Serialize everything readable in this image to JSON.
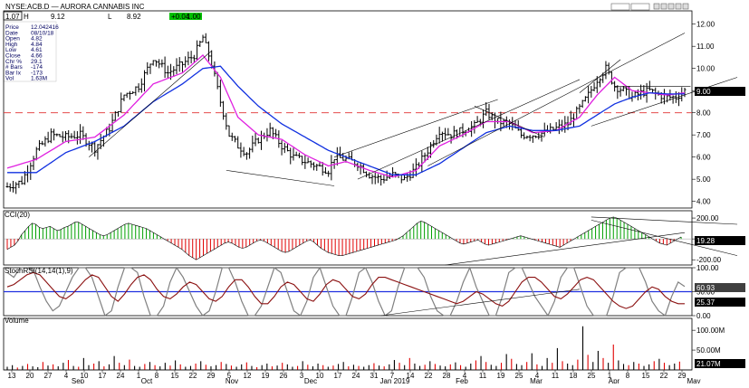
{
  "header": {
    "left_value": "1.07",
    "h_label": "H",
    "h_value": "9.12",
    "l_label": "L",
    "l_value": "8.92",
    "change": "+0.04",
    "change_value": "1.00",
    "symbol": "NYSE:ACB.D — AURORA CANNABIS INC"
  },
  "info_box": [
    {
      "label": "Price",
      "value": "12.042416"
    },
    {
      "label": "Date",
      "value": "08/10/18"
    },
    {
      "label": "Open",
      "value": "4.82"
    },
    {
      "label": "High",
      "value": "4.84"
    },
    {
      "label": "Low",
      "value": "4.61"
    },
    {
      "label": "Close",
      "value": "4.66"
    },
    {
      "label": "Chr %",
      "value": "29.1"
    },
    {
      "label": "# Bars",
      "value": "-174"
    },
    {
      "label": "Bar Ix",
      "value": "-173"
    },
    {
      "label": "Vol",
      "value": "1.63M"
    }
  ],
  "panels": {
    "cci": {
      "label": "CCI(20)",
      "ticks": [
        "200.00",
        "0.00",
        "-200.00"
      ],
      "value_badge": "19.28"
    },
    "stoch": {
      "label": "StochRSI(14,14(1),9)",
      "ticks": [
        "100.00",
        "50.00",
        "0.00"
      ],
      "value_badge_1": "60.93",
      "value_badge_2": "25.37"
    },
    "volume": {
      "label": "Volume",
      "ticks": [
        "100.00M",
        "50.00M"
      ],
      "value_badge": "21.07M"
    }
  },
  "price_badge": "9.00",
  "x_axis": {
    "day_ticks": [
      "13",
      "20",
      "27",
      "4",
      "10",
      "17",
      "24",
      "1",
      "8",
      "15",
      "22",
      "29",
      "5",
      "12",
      "19",
      "26",
      "3",
      "10",
      "17",
      "24",
      "31",
      "7",
      "14",
      "22",
      "28",
      "4",
      "11",
      "19",
      "25",
      "4",
      "11",
      "18",
      "25",
      "1",
      "8",
      "15",
      "22",
      "29"
    ],
    "month_labels": [
      "Sep",
      "Oct",
      "Nov",
      "Dec",
      "Jan 2019",
      "Feb",
      "Mar",
      "Apr",
      "May"
    ]
  },
  "chart_data": [
    {
      "type": "candlestick",
      "title": "NYSE:ACB.D — AURORA CANNABIS INC",
      "y_ticks": [
        4.0,
        5.0,
        6.0,
        7.0,
        8.0,
        9.0,
        10.0,
        11.0,
        12.0
      ],
      "ylim": [
        3.7,
        12.6
      ],
      "horizontal_line": 8.0,
      "last_price": 9.0,
      "close_path": [
        [
          0,
          4.66
        ],
        [
          5,
          4.9
        ],
        [
          10,
          6.3
        ],
        [
          15,
          7.0
        ],
        [
          20,
          6.9
        ],
        [
          25,
          7.0
        ],
        [
          30,
          6.4
        ],
        [
          35,
          7.3
        ],
        [
          40,
          8.8
        ],
        [
          45,
          9.2
        ],
        [
          50,
          10.5
        ],
        [
          55,
          9.8
        ],
        [
          60,
          10.2
        ],
        [
          64,
          10.6
        ],
        [
          67,
          11.4
        ],
        [
          70,
          10.2
        ],
        [
          73,
          8.5
        ],
        [
          76,
          7.0
        ],
        [
          79,
          6.5
        ],
        [
          82,
          6.2
        ],
        [
          86,
          6.8
        ],
        [
          90,
          7.2
        ],
        [
          94,
          6.5
        ],
        [
          98,
          6.0
        ],
        [
          102,
          5.8
        ],
        [
          106,
          5.6
        ],
        [
          110,
          5.4
        ],
        [
          112,
          6.0
        ],
        [
          116,
          5.9
        ],
        [
          120,
          5.7
        ],
        [
          124,
          5.2
        ],
        [
          128,
          5.0
        ],
        [
          132,
          5.2
        ],
        [
          136,
          5.0
        ],
        [
          140,
          5.5
        ],
        [
          144,
          6.3
        ],
        [
          148,
          7.2
        ],
        [
          152,
          7.0
        ],
        [
          156,
          7.2
        ],
        [
          160,
          7.4
        ],
        [
          164,
          8.0
        ],
        [
          168,
          7.6
        ],
        [
          172,
          7.5
        ],
        [
          176,
          7.0
        ],
        [
          180,
          7.0
        ],
        [
          184,
          7.1
        ],
        [
          188,
          7.3
        ],
        [
          192,
          7.5
        ],
        [
          196,
          8.2
        ],
        [
          199,
          8.8
        ],
        [
          202,
          9.5
        ],
        [
          205,
          10.0
        ],
        [
          208,
          9.2
        ],
        [
          211,
          9.0
        ],
        [
          214,
          8.7
        ],
        [
          217,
          8.9
        ],
        [
          220,
          9.0
        ],
        [
          223,
          8.8
        ],
        [
          226,
          8.7
        ],
        [
          229,
          8.7
        ],
        [
          232,
          9.0
        ]
      ],
      "series": [
        {
          "name": "",
          "color": "#e020e0",
          "values": [
            [
              0,
              5.5
            ],
            [
              10,
              5.9
            ],
            [
              20,
              6.7
            ],
            [
              30,
              6.9
            ],
            [
              40,
              7.9
            ],
            [
              50,
              9.3
            ],
            [
              60,
              9.8
            ],
            [
              67,
              10.6
            ],
            [
              73,
              9.6
            ],
            [
              79,
              7.8
            ],
            [
              86,
              7.0
            ],
            [
              94,
              6.8
            ],
            [
              102,
              6.1
            ],
            [
              110,
              5.6
            ],
            [
              116,
              5.8
            ],
            [
              124,
              5.4
            ],
            [
              132,
              5.1
            ],
            [
              140,
              5.4
            ],
            [
              148,
              6.5
            ],
            [
              156,
              7.0
            ],
            [
              164,
              7.6
            ],
            [
              172,
              7.6
            ],
            [
              180,
              7.1
            ],
            [
              188,
              7.2
            ],
            [
              196,
              7.8
            ],
            [
              202,
              8.8
            ],
            [
              208,
              9.6
            ],
            [
              214,
              9.0
            ],
            [
              220,
              8.9
            ],
            [
              226,
              8.8
            ],
            [
              232,
              8.9
            ]
          ]
        },
        {
          "name": "",
          "color": "#1030e0",
          "values": [
            [
              0,
              5.3
            ],
            [
              10,
              5.3
            ],
            [
              20,
              6.2
            ],
            [
              30,
              6.7
            ],
            [
              40,
              7.4
            ],
            [
              50,
              8.5
            ],
            [
              60,
              9.3
            ],
            [
              67,
              10.0
            ],
            [
              73,
              10.1
            ],
            [
              79,
              9.2
            ],
            [
              86,
              8.3
            ],
            [
              94,
              7.5
            ],
            [
              102,
              6.9
            ],
            [
              110,
              6.3
            ],
            [
              116,
              6.0
            ],
            [
              124,
              5.6
            ],
            [
              132,
              5.2
            ],
            [
              140,
              5.2
            ],
            [
              148,
              5.7
            ],
            [
              156,
              6.4
            ],
            [
              164,
              7.1
            ],
            [
              172,
              7.4
            ],
            [
              180,
              7.2
            ],
            [
              188,
              7.2
            ],
            [
              196,
              7.4
            ],
            [
              202,
              7.9
            ],
            [
              208,
              8.4
            ],
            [
              214,
              8.7
            ],
            [
              220,
              8.9
            ],
            [
              226,
              8.85
            ],
            [
              232,
              8.85
            ]
          ]
        }
      ]
    },
    {
      "type": "bar",
      "title": "CCI(20)",
      "ylim": [
        -250,
        270
      ],
      "y_ticks": [
        200,
        0,
        -200
      ],
      "values": [
        -100,
        -80,
        -60,
        -20,
        40,
        80,
        120,
        150,
        140,
        110,
        100,
        110,
        120,
        100,
        80,
        90,
        110,
        120,
        140,
        160,
        160,
        140,
        120,
        100,
        80,
        60,
        40,
        30,
        40,
        60,
        80,
        100,
        120,
        140,
        150,
        140,
        130,
        120,
        110,
        100,
        80,
        60,
        40,
        20,
        0,
        -20,
        -40,
        -60,
        -80,
        -100,
        -130,
        -160,
        -180,
        -200,
        -180,
        -160,
        -140,
        -120,
        -100,
        -80,
        -60,
        -40,
        -30,
        -40,
        -60,
        -80,
        -90,
        -80,
        -60,
        -40,
        -20,
        -10,
        -20,
        -40,
        -60,
        -80,
        -100,
        -120,
        -130,
        -120,
        -100,
        -80,
        -60,
        -40,
        -20,
        -10,
        -30,
        -60,
        -90,
        -110,
        -130,
        -140,
        -150,
        -160,
        -160,
        -150,
        -140,
        -130,
        -120,
        -110,
        -100,
        -90,
        -80,
        -70,
        -60,
        -50,
        -40,
        -30,
        -20,
        -10,
        10,
        30,
        60,
        90,
        120,
        150,
        170,
        160,
        140,
        120,
        100,
        80,
        60,
        40,
        20,
        0,
        -20,
        -40,
        -50,
        -40,
        -30,
        -20,
        -10,
        -30,
        -50,
        -60,
        -50,
        -40,
        -30,
        -20,
        -10,
        0,
        10,
        20,
        30,
        20,
        10,
        0,
        -10,
        -20,
        -30,
        -40,
        -50,
        -60,
        -70,
        -80,
        -60,
        -40,
        -20,
        0,
        20,
        40,
        60,
        80,
        100,
        120,
        140,
        160,
        180,
        200,
        210,
        200,
        180,
        160,
        140,
        120,
        100,
        80,
        60,
        40,
        20,
        0,
        -20,
        -40,
        -50,
        -60,
        -40,
        -20,
        0,
        19
      ]
    },
    {
      "type": "line",
      "title": "StochRSI(14,14(1),9)",
      "ylim": [
        0,
        100
      ],
      "y_ticks": [
        100,
        50,
        0
      ],
      "series": [
        {
          "name": "",
          "color": "#808080",
          "values": [
            90,
            80,
            100,
            100,
            95,
            60,
            30,
            10,
            20,
            50,
            80,
            100,
            100,
            80,
            40,
            0,
            10,
            60,
            100,
            100,
            90,
            40,
            0,
            0,
            20,
            70,
            100,
            80,
            50,
            20,
            0,
            10,
            50,
            100,
            100,
            70,
            30,
            0,
            0,
            20,
            60,
            100,
            90,
            50,
            10,
            0,
            30,
            80,
            100,
            60,
            20,
            0,
            0,
            40,
            90,
            100,
            70,
            30,
            0,
            10,
            60,
            100,
            100,
            100,
            80,
            40,
            10,
            0,
            0,
            30,
            70,
            100,
            60,
            30,
            0,
            0,
            40,
            90,
            100,
            100,
            70,
            40,
            20,
            0,
            30,
            80,
            100,
            100,
            60,
            20,
            0,
            0,
            0,
            40,
            90,
            100,
            100,
            100,
            70,
            30,
            10,
            0,
            40,
            70,
            61
          ]
        },
        {
          "name": "",
          "color": "#8b1010",
          "values": [
            60,
            65,
            75,
            85,
            90,
            85,
            70,
            55,
            40,
            35,
            45,
            60,
            75,
            85,
            80,
            60,
            40,
            30,
            45,
            65,
            80,
            85,
            75,
            55,
            40,
            35,
            45,
            60,
            70,
            65,
            50,
            35,
            30,
            40,
            60,
            75,
            75,
            60,
            40,
            25,
            25,
            40,
            60,
            70,
            65,
            50,
            35,
            30,
            45,
            65,
            75,
            70,
            55,
            40,
            35,
            45,
            65,
            80,
            80,
            75,
            70,
            65,
            60,
            55,
            50,
            45,
            40,
            35,
            30,
            25,
            30,
            40,
            50,
            45,
            35,
            25,
            20,
            30,
            50,
            70,
            80,
            80,
            70,
            55,
            40,
            35,
            45,
            60,
            75,
            80,
            75,
            60,
            45,
            30,
            20,
            15,
            20,
            35,
            50,
            60,
            55,
            40,
            30,
            25,
            25
          ]
        }
      ]
    },
    {
      "type": "bar",
      "title": "Volume",
      "ylim": [
        0,
        130
      ],
      "y_ticks": [
        100,
        50
      ],
      "unit": "M",
      "values": [
        8,
        12,
        6,
        10,
        15,
        9,
        7,
        20,
        11,
        14,
        9,
        18,
        25,
        10,
        8,
        30,
        12,
        16,
        22,
        9,
        14,
        35,
        18,
        12,
        26,
        10,
        8,
        15,
        20,
        12,
        9,
        18,
        11,
        24,
        14,
        8,
        10,
        16,
        22,
        13,
        9,
        12,
        20,
        15,
        11,
        8,
        14,
        19,
        10,
        7,
        12,
        16,
        9,
        11,
        18,
        14,
        8,
        10,
        22,
        13,
        9,
        16,
        12,
        8,
        11,
        15,
        20,
        9,
        13,
        10,
        8,
        12,
        17,
        11,
        9,
        14,
        25,
        18,
        12,
        30,
        16,
        10,
        13,
        22,
        15,
        11,
        9,
        14,
        19,
        12,
        8,
        16,
        24,
        35,
        20,
        13,
        10,
        18,
        40,
        28,
        15,
        12,
        20,
        42,
        14,
        10,
        30,
        18,
        55,
        22,
        16,
        12,
        26,
        110,
        38,
        20,
        48,
        30,
        18,
        64,
        24,
        15,
        12,
        20,
        16,
        10,
        14,
        22,
        28,
        18,
        12,
        16,
        21
      ]
    }
  ]
}
